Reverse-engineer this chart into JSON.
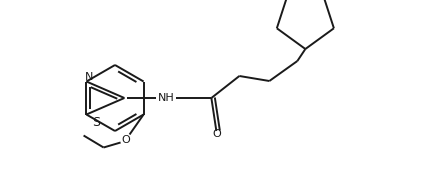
{
  "background_color": "#ffffff",
  "line_color": "#1a1a1a",
  "heteroatom_color": "#4a4a4a",
  "N_color": "#1a1a1a",
  "S_color": "#1a1a1a",
  "O_color": "#1a1a1a",
  "line_width": 1.4,
  "figsize": [
    4.47,
    1.86
  ],
  "dpi": 100,
  "xlim": [
    0,
    447
  ],
  "ylim": [
    0,
    186
  ]
}
